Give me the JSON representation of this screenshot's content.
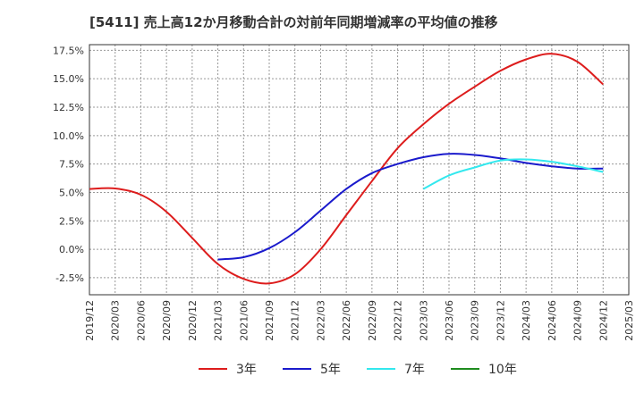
{
  "title": "[5411]  売上高12か月移動合計の対前年同期増減率の平均値の推移",
  "chart_data": {
    "type": "line",
    "title": "[5411]  売上高12か月移動合計の対前年同期増減率の平均値の推移",
    "xlabel": "",
    "ylabel": "",
    "x_ticks": [
      "2019/12",
      "2020/03",
      "2020/06",
      "2020/09",
      "2020/12",
      "2021/03",
      "2021/06",
      "2021/09",
      "2021/12",
      "2022/03",
      "2022/06",
      "2022/09",
      "2022/12",
      "2023/03",
      "2023/06",
      "2023/09",
      "2023/12",
      "2024/03",
      "2024/06",
      "2024/09",
      "2024/12",
      "2025/03"
    ],
    "y_ticks": [
      "17.5%",
      "15.0%",
      "12.5%",
      "10.0%",
      "7.5%",
      "5.0%",
      "2.5%",
      "0.0%",
      "-2.5%"
    ],
    "y_tick_values": [
      17.5,
      15.0,
      12.5,
      10.0,
      7.5,
      5.0,
      2.5,
      0.0,
      -2.5
    ],
    "ylim": [
      -4.0,
      18.0
    ],
    "grid": true,
    "legend_position": "bottom",
    "series": [
      {
        "name": "3年",
        "color": "#dd1c1c",
        "points": [
          [
            "2019/12",
            5.3
          ],
          [
            "2020/03",
            5.35
          ],
          [
            "2020/06",
            4.8
          ],
          [
            "2020/09",
            3.3
          ],
          [
            "2020/12",
            1.0
          ],
          [
            "2021/03",
            -1.3
          ],
          [
            "2021/06",
            -2.6
          ],
          [
            "2021/09",
            -3.0
          ],
          [
            "2021/12",
            -2.2
          ],
          [
            "2022/03",
            0.0
          ],
          [
            "2022/06",
            3.0
          ],
          [
            "2022/09",
            6.0
          ],
          [
            "2022/12",
            8.9
          ],
          [
            "2023/03",
            11.0
          ],
          [
            "2023/06",
            12.8
          ],
          [
            "2023/09",
            14.3
          ],
          [
            "2023/12",
            15.7
          ],
          [
            "2024/03",
            16.7
          ],
          [
            "2024/06",
            17.2
          ],
          [
            "2024/09",
            16.5
          ],
          [
            "2024/12",
            14.5
          ]
        ]
      },
      {
        "name": "5年",
        "color": "#1a1acc",
        "points": [
          [
            "2021/03",
            -0.9
          ],
          [
            "2021/06",
            -0.7
          ],
          [
            "2021/09",
            0.1
          ],
          [
            "2021/12",
            1.5
          ],
          [
            "2022/03",
            3.4
          ],
          [
            "2022/06",
            5.3
          ],
          [
            "2022/09",
            6.7
          ],
          [
            "2022/12",
            7.5
          ],
          [
            "2023/03",
            8.1
          ],
          [
            "2023/06",
            8.4
          ],
          [
            "2023/09",
            8.3
          ],
          [
            "2023/12",
            8.0
          ],
          [
            "2024/03",
            7.6
          ],
          [
            "2024/06",
            7.3
          ],
          [
            "2024/09",
            7.1
          ],
          [
            "2024/12",
            7.1
          ]
        ]
      },
      {
        "name": "7年",
        "color": "#33e8ee",
        "points": [
          [
            "2023/03",
            5.3
          ],
          [
            "2023/06",
            6.5
          ],
          [
            "2023/09",
            7.2
          ],
          [
            "2023/12",
            7.8
          ],
          [
            "2024/03",
            7.9
          ],
          [
            "2024/06",
            7.7
          ],
          [
            "2024/09",
            7.3
          ],
          [
            "2024/12",
            6.8
          ]
        ]
      },
      {
        "name": "10年",
        "color": "#1e8c1e",
        "points": []
      }
    ]
  }
}
